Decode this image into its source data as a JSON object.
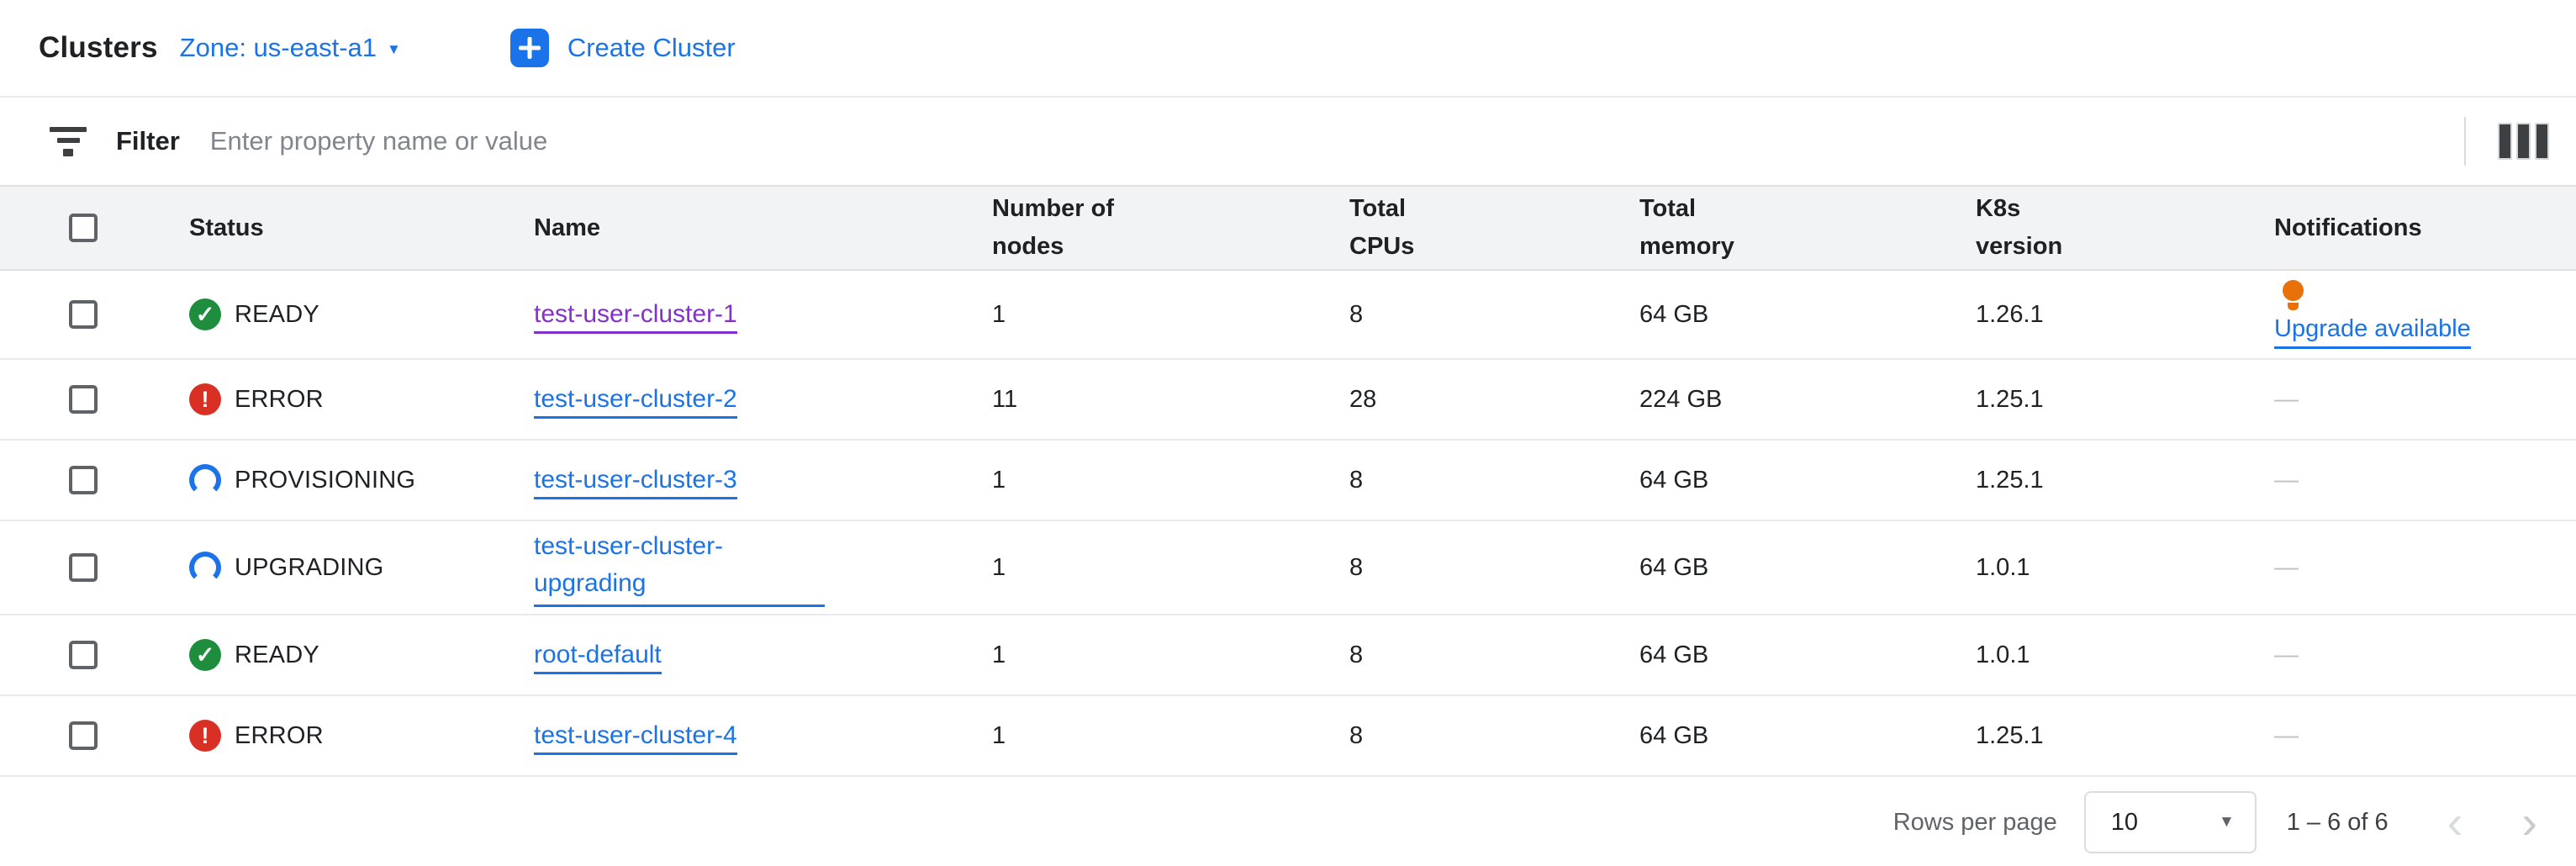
{
  "header": {
    "title": "Clusters",
    "zone_label": "Zone: us-east-a1",
    "create_button_label": "Create Cluster"
  },
  "filter": {
    "label": "Filter",
    "placeholder": "Enter property name or value"
  },
  "table": {
    "columns": [
      "Status",
      "Name",
      "Number of nodes",
      "Total CPUs",
      "Total memory",
      "K8s version",
      "Notifications"
    ],
    "rows": [
      {
        "status": "READY",
        "name": "test-user-cluster-1",
        "nodes": "1",
        "cpus": "8",
        "memory": "64 GB",
        "k8s": "1.26.1",
        "notification": "Upgrade available"
      },
      {
        "status": "ERROR",
        "name": "test-user-cluster-2",
        "nodes": "11",
        "cpus": "28",
        "memory": "224 GB",
        "k8s": "1.25.1",
        "notification": "—"
      },
      {
        "status": "PROVISIONING",
        "name": "test-user-cluster-3",
        "nodes": "1",
        "cpus": "8",
        "memory": "64 GB",
        "k8s": "1.25.1",
        "notification": "—"
      },
      {
        "status": "UPGRADING",
        "name": "test-user-cluster-upgrading",
        "nodes": "1",
        "cpus": "8",
        "memory": "64 GB",
        "k8s": "1.0.1",
        "notification": "—"
      },
      {
        "status": "READY",
        "name": "root-default",
        "nodes": "1",
        "cpus": "8",
        "memory": "64 GB",
        "k8s": "1.0.1",
        "notification": "—"
      },
      {
        "status": "ERROR",
        "name": "test-user-cluster-4",
        "nodes": "1",
        "cpus": "8",
        "memory": "64 GB",
        "k8s": "1.25.1",
        "notification": "—"
      }
    ]
  },
  "pagination": {
    "rows_per_page_label": "Rows per page",
    "rows_per_page_value": "10",
    "range_label": "1 – 6 of 6",
    "prev_glyph": "‹",
    "next_glyph": "›"
  },
  "icons": {
    "zone_caret": "▼",
    "select_caret": "▼",
    "ready_glyph": "✓",
    "error_glyph": "!"
  },
  "colors": {
    "accent_blue": "#1a73e8",
    "status_green": "#1e8e3e",
    "status_red": "#d93025",
    "notice_orange": "#e8710a",
    "visited_purple": "#8430ce"
  }
}
